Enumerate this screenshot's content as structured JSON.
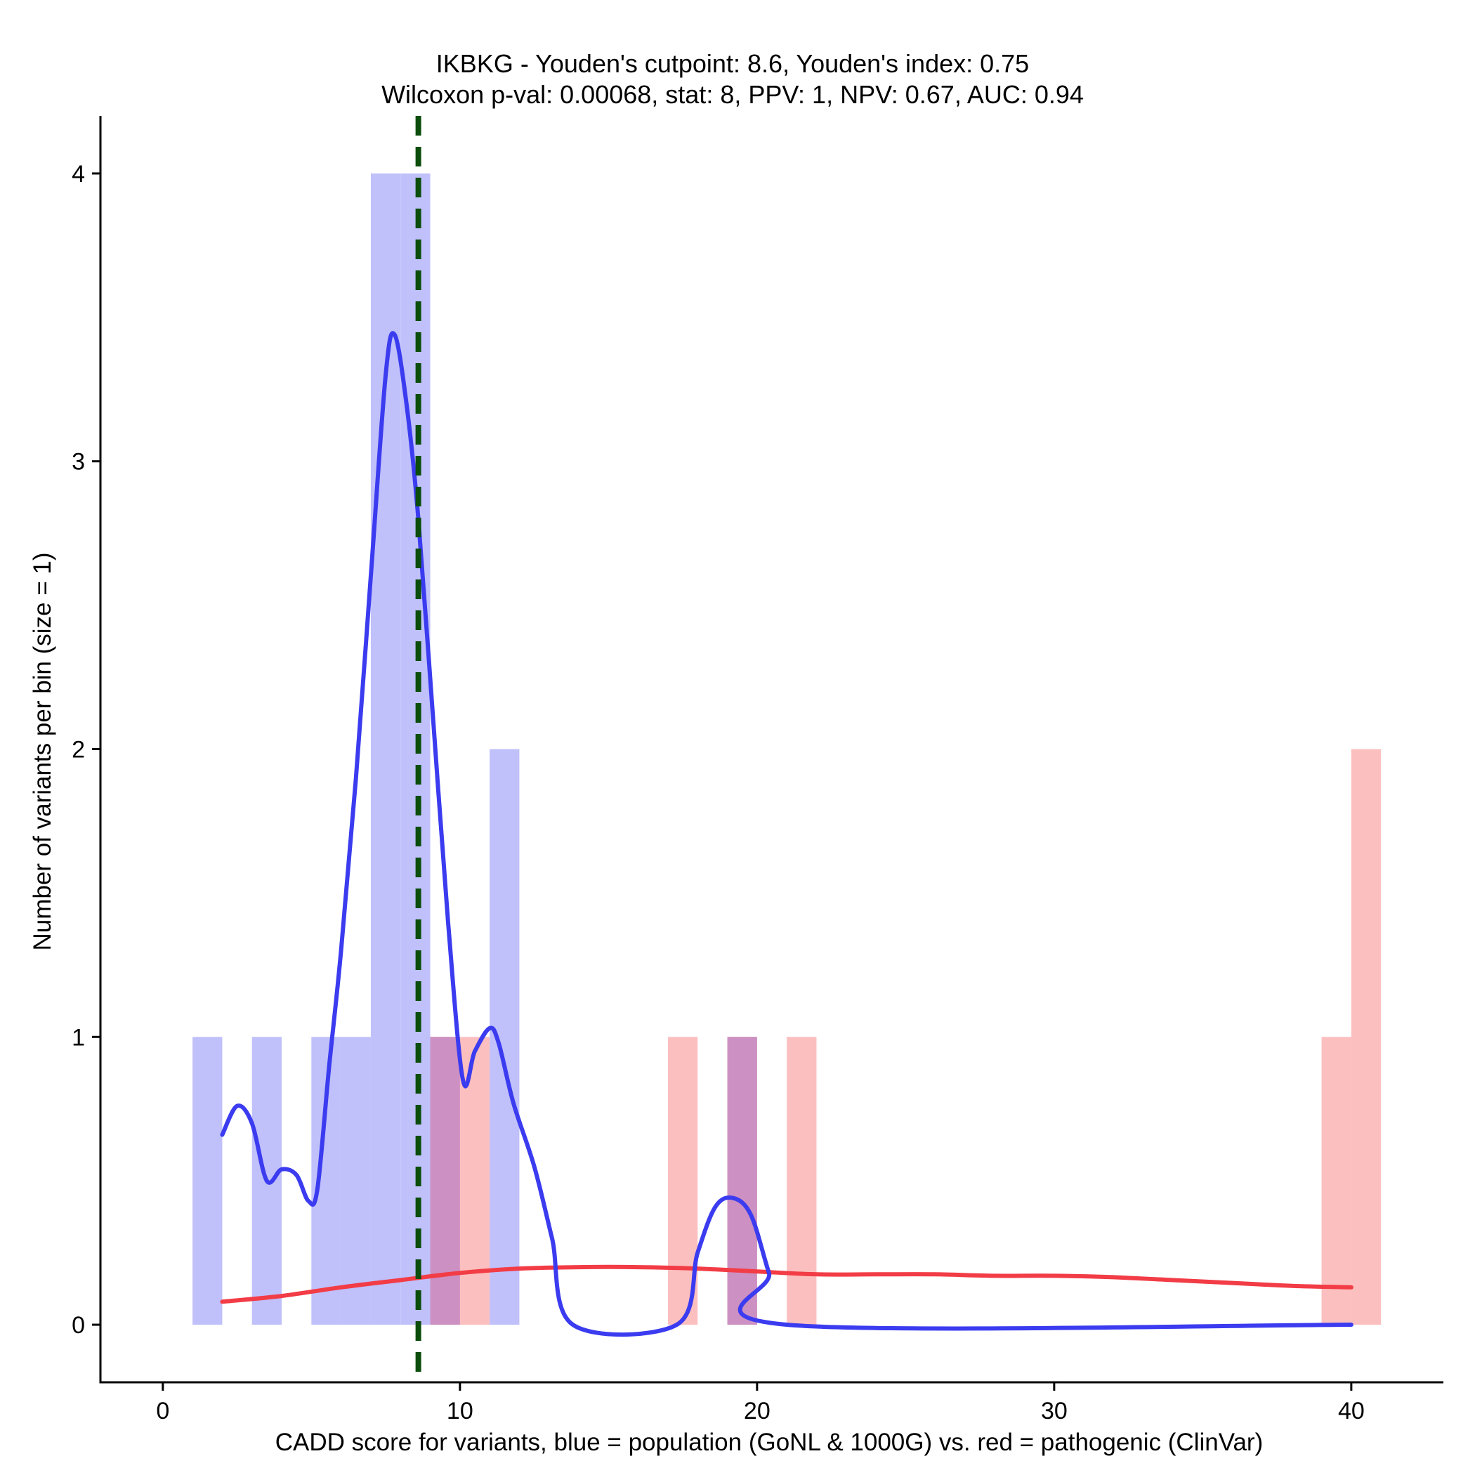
{
  "chart_data": {
    "type": "bar",
    "title": "IKBKG - Youden's cutpoint: 8.6, Youden's index: 0.75",
    "subtitle": "Wilcoxon p-val: 0.00068, stat: 8, PPV: 1, NPV: 0.67, AUC: 0.94",
    "xlabel": "CADD score for variants, blue = population (GoNL & 1000G) vs. red = pathogenic (ClinVar)",
    "ylabel": "Number of variants per bin (size = 1)",
    "xlim": [
      -2.1,
      43.1
    ],
    "ylim": [
      -0.2,
      4.2
    ],
    "x_ticks": [
      0,
      10,
      20,
      30,
      40
    ],
    "y_ticks": [
      0,
      1,
      2,
      3,
      4
    ],
    "bin_width": 1,
    "cutpoint": 8.6,
    "colors": {
      "population_bar": "#c0c0fb",
      "pathogenic_bar": "#fcbfbf",
      "overlap_bar": "#cd90c2",
      "population_line": "#3b3bf0",
      "pathogenic_line": "#f23c46",
      "cutpoint_line": "#0b4d0b"
    },
    "series": [
      {
        "role": "population",
        "bins": [
          {
            "x": 1.5,
            "count": 1
          },
          {
            "x": 3.5,
            "count": 1
          },
          {
            "x": 5.5,
            "count": 1
          },
          {
            "x": 6.5,
            "count": 1
          },
          {
            "x": 7.5,
            "count": 4
          },
          {
            "x": 8.5,
            "count": 4
          },
          {
            "x": 9.5,
            "count": 1
          },
          {
            "x": 11.5,
            "count": 2
          },
          {
            "x": 19.5,
            "count": 1
          }
        ],
        "density_curve": [
          [
            2,
            0.66
          ],
          [
            2.5,
            0.76
          ],
          [
            3,
            0.7
          ],
          [
            3.5,
            0.5
          ],
          [
            4,
            0.54
          ],
          [
            4.5,
            0.52
          ],
          [
            4.9,
            0.43
          ],
          [
            5.2,
            0.47
          ],
          [
            5.6,
            0.9
          ],
          [
            6,
            1.3
          ],
          [
            6.5,
            1.9
          ],
          [
            7,
            2.6
          ],
          [
            7.5,
            3.3
          ],
          [
            7.8,
            3.44
          ],
          [
            8.2,
            3.2
          ],
          [
            8.6,
            2.8
          ],
          [
            9.1,
            2.1
          ],
          [
            9.6,
            1.4
          ],
          [
            10.1,
            0.85
          ],
          [
            10.5,
            0.95
          ],
          [
            11,
            1.03
          ],
          [
            11.3,
            0.98
          ],
          [
            11.8,
            0.77
          ],
          [
            12.5,
            0.55
          ],
          [
            13.1,
            0.3
          ],
          [
            13.8,
            0.0
          ],
          [
            17.3,
            0.0
          ],
          [
            18,
            0.25
          ],
          [
            18.6,
            0.41
          ],
          [
            19.2,
            0.44
          ],
          [
            19.8,
            0.38
          ],
          [
            20.4,
            0.18
          ],
          [
            21,
            0.0
          ],
          [
            40,
            0.0
          ]
        ]
      },
      {
        "role": "pathogenic",
        "bins": [
          {
            "x": 9.5,
            "count": 1
          },
          {
            "x": 10.5,
            "count": 1
          },
          {
            "x": 17.5,
            "count": 1
          },
          {
            "x": 19.5,
            "count": 1
          },
          {
            "x": 21.5,
            "count": 1
          },
          {
            "x": 39.5,
            "count": 1
          },
          {
            "x": 40.5,
            "count": 2
          }
        ],
        "density_curve": [
          [
            2,
            0.08
          ],
          [
            4,
            0.1
          ],
          [
            6,
            0.13
          ],
          [
            8,
            0.155
          ],
          [
            10,
            0.18
          ],
          [
            12,
            0.195
          ],
          [
            14,
            0.2
          ],
          [
            16,
            0.2
          ],
          [
            18,
            0.195
          ],
          [
            20,
            0.185
          ],
          [
            22,
            0.175
          ],
          [
            24,
            0.175
          ],
          [
            26,
            0.175
          ],
          [
            28,
            0.17
          ],
          [
            30,
            0.17
          ],
          [
            32,
            0.165
          ],
          [
            34,
            0.155
          ],
          [
            36,
            0.145
          ],
          [
            38,
            0.135
          ],
          [
            40,
            0.13
          ]
        ]
      }
    ]
  }
}
